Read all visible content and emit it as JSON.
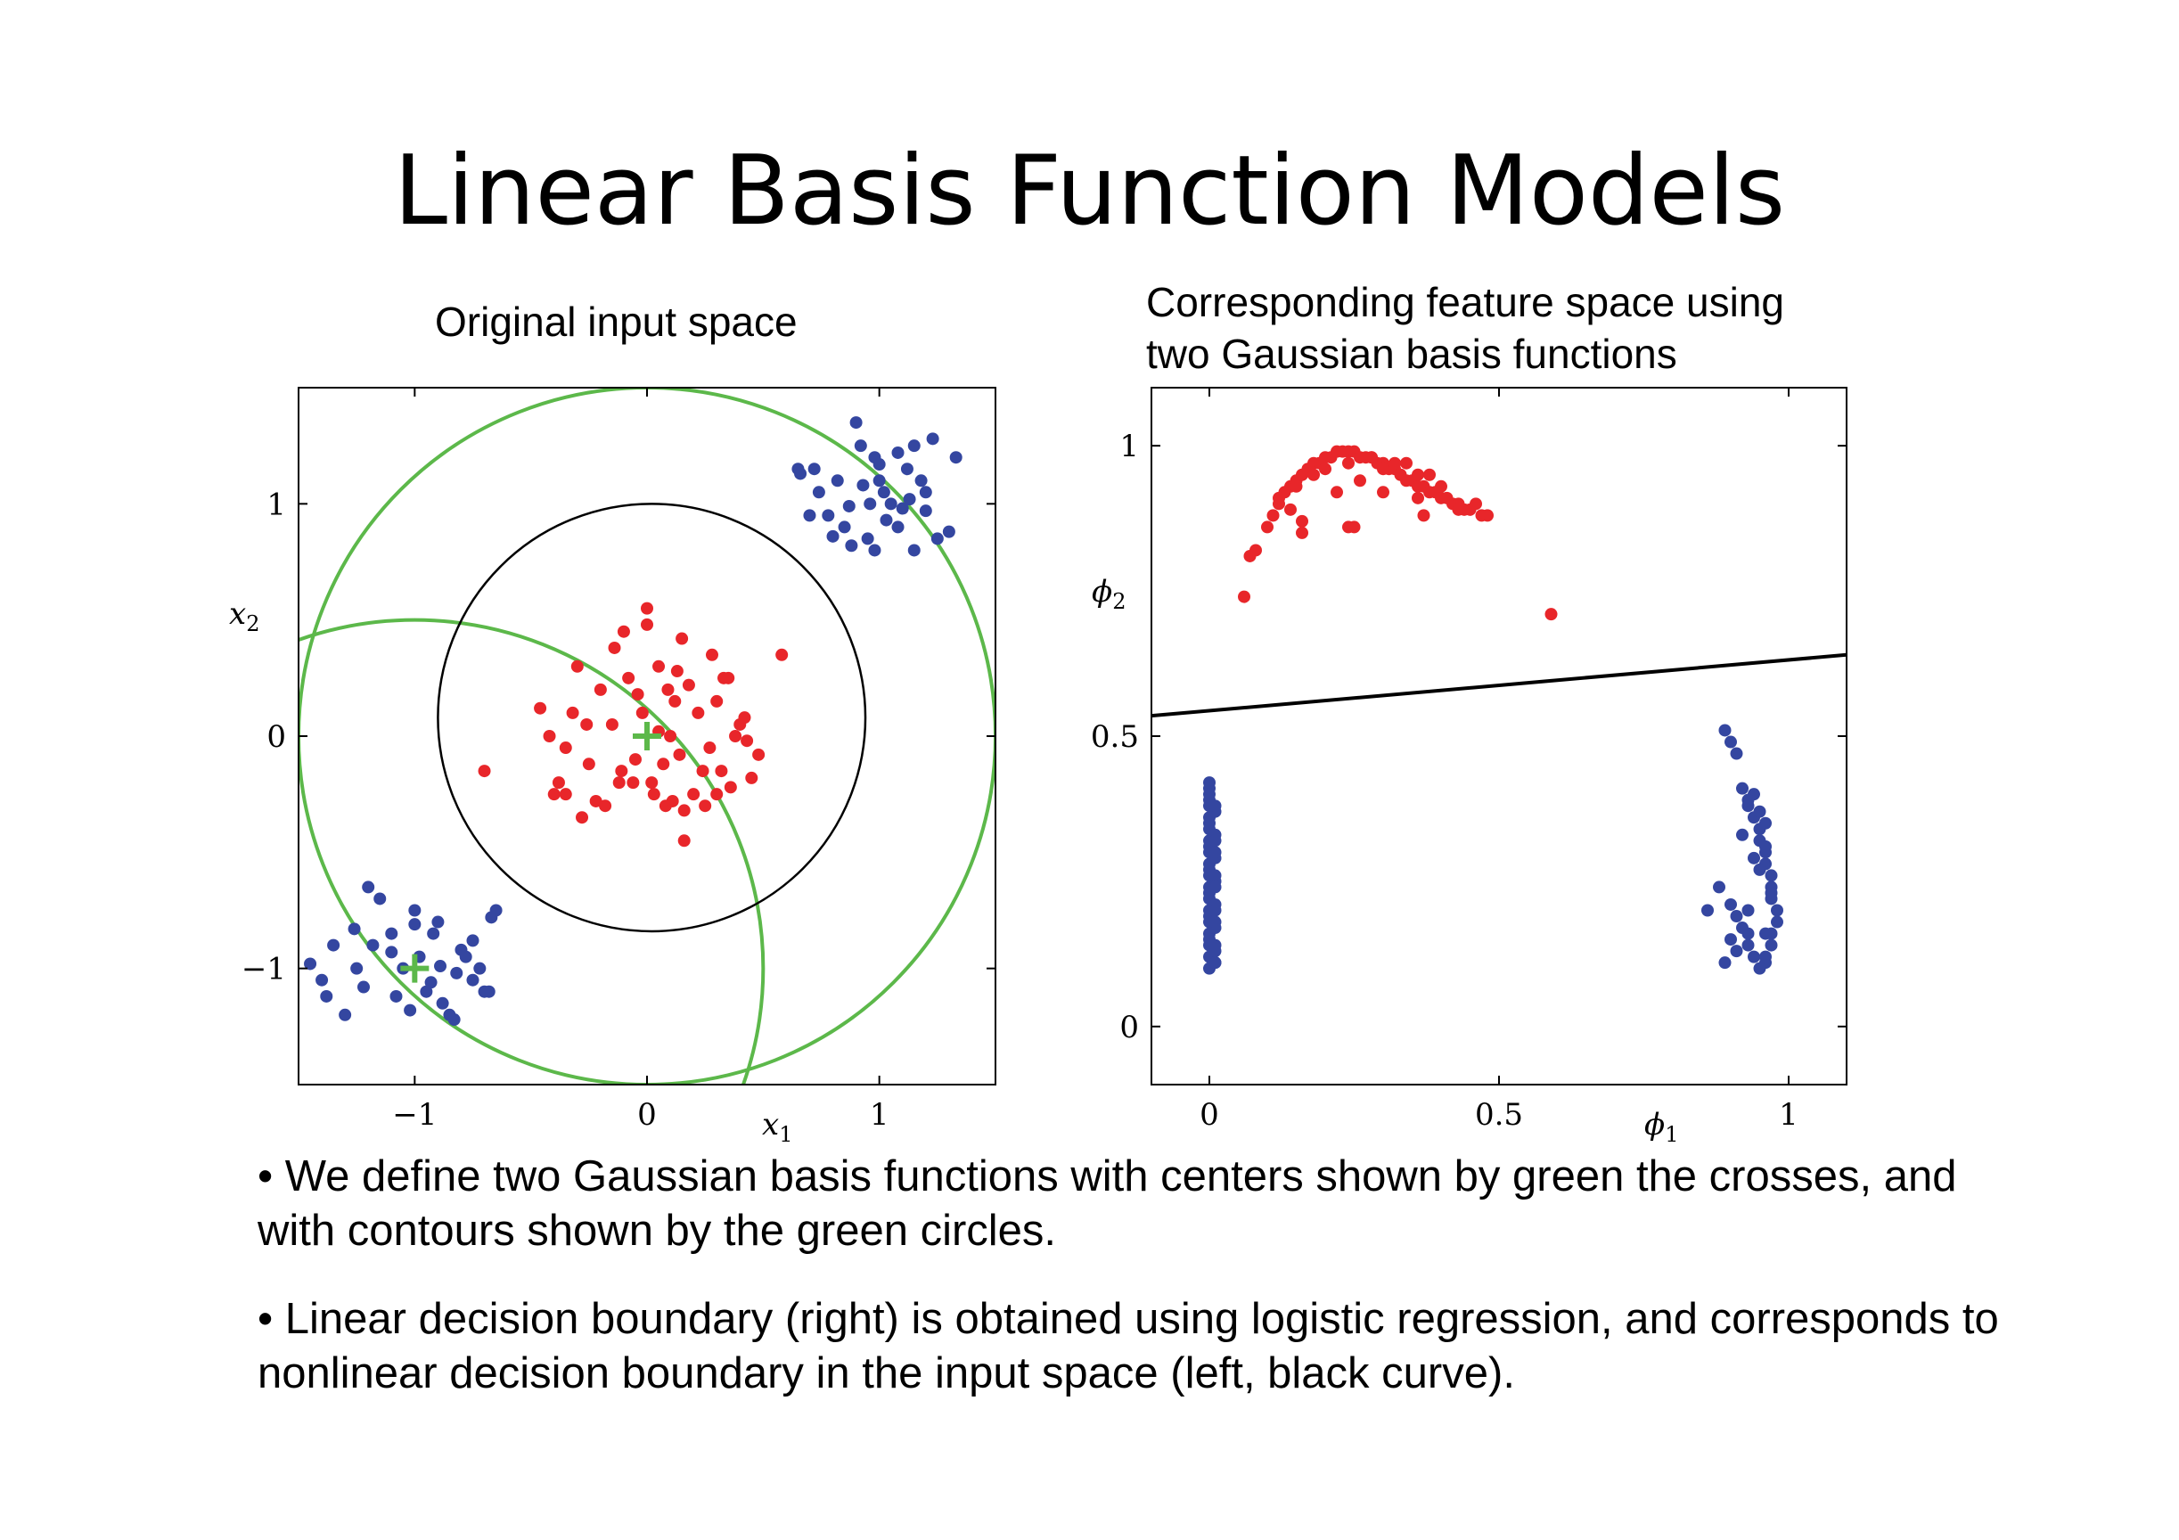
{
  "slide": {
    "title": "Linear Basis Function Models",
    "left_caption": "Original input space",
    "right_caption_line1": "Corresponding feature space using",
    "right_caption_line2": "two Gaussian basis functions",
    "bullets": [
      "• We define two Gaussian basis functions with centers shown by green the crosses, and with contours shown by the green circles.",
      "• Linear decision boundary (right) is obtained using logistic regression, and corresponds to nonlinear decision boundary in the input space (left, black curve)."
    ]
  },
  "colors": {
    "red_class": "#e8262a",
    "blue_class": "#3446a0",
    "contour": "#5cb84a",
    "boundary": "#000000"
  },
  "chart_data": [
    {
      "type": "scatter",
      "title": "Original input space",
      "xlabel": "x1",
      "ylabel": "x2",
      "xlim": [
        -1.5,
        1.5
      ],
      "ylim": [
        -1.5,
        1.5
      ],
      "xticks": [
        "−1",
        "0",
        "1"
      ],
      "yticks": [
        "1",
        "0",
        "−1"
      ],
      "xtick_values": [
        -1,
        0,
        1
      ],
      "ytick_values": [
        1,
        0,
        -1
      ],
      "series": [
        {
          "class": "red",
          "x": [
            0.0,
            -0.3,
            0.28,
            -0.1,
            0.35,
            0.15,
            0.22,
            -0.2,
            0.05,
            0.4,
            -0.35,
            0.1,
            -0.05,
            0.32,
            -0.25,
            0.48,
            -0.12,
            0.2,
            -0.4,
            0.08,
            0.25,
            -0.28,
            0.36,
            0.12,
            -0.15,
            0.3,
            -0.02,
            0.18,
            -0.32,
            0.02,
            -0.22,
            0.27,
            0.07,
            -0.08,
            0.14,
            -0.38,
            0.43,
            -0.18,
            0.38,
            0.03,
            0.16,
            -0.26,
            0.24,
            0.09,
            -0.11,
            0.33,
            -0.04,
            0.11,
            -0.42,
            0.05,
            -0.35,
            0.3,
            0.16,
            -0.14,
            0.58,
            -0.7,
            0.45,
            0.0,
            0.42,
            -0.46,
            0.13,
            -0.06
          ],
          "y": [
            0.55,
            0.3,
            0.35,
            0.45,
            0.25,
            0.42,
            0.1,
            0.2,
            0.3,
            0.05,
            -0.05,
            0.0,
            -0.1,
            -0.15,
            -0.12,
            -0.08,
            -0.2,
            -0.25,
            -0.25,
            -0.3,
            -0.3,
            -0.35,
            -0.22,
            0.15,
            0.05,
            0.15,
            0.1,
            0.22,
            0.1,
            -0.2,
            -0.28,
            -0.05,
            -0.12,
            0.25,
            -0.08,
            -0.2,
            -0.02,
            -0.3,
            0.0,
            -0.25,
            -0.32,
            0.05,
            -0.15,
            0.2,
            -0.15,
            0.25,
            0.18,
            -0.28,
            0.0,
            0.02,
            -0.25,
            -0.25,
            -0.45,
            0.38,
            0.35,
            -0.15,
            -0.18,
            0.48,
            0.08,
            0.12,
            0.28,
            -0.2
          ]
        },
        {
          "class": "blue",
          "x": [
            0.9,
            0.72,
            1.2,
            1.15,
            1.33,
            1.3,
            0.82,
            0.98,
            1.05,
            0.95,
            1.0,
            0.78,
            1.08,
            0.65,
            1.02,
            0.92,
            0.88,
            1.12,
            1.18,
            0.74,
            1.03,
            1.1,
            0.85,
            1.25,
            0.7,
            0.93,
            1.08,
            0.98,
            1.15,
            1.23,
            0.8,
            0.87,
            1.0,
            0.66,
            0.96,
            1.13,
            1.2,
            -1.0,
            -1.2,
            -1.35,
            -0.9,
            -0.8,
            -0.7,
            -1.1,
            -1.25,
            -0.75,
            -0.65,
            -0.85,
            -1.05,
            -0.95,
            -1.4,
            -0.98,
            -1.15,
            -0.88,
            -1.3,
            -0.72,
            -1.08,
            -1.18,
            -0.67,
            -0.92,
            -0.78,
            -1.45,
            -0.82,
            -1.02,
            -1.26,
            -0.93,
            -1.1,
            -0.83,
            -1.38,
            -0.75,
            -1.0,
            -1.22,
            -0.89,
            -0.68
          ],
          "y": [
            1.35,
            1.15,
            1.05,
            1.25,
            1.2,
            0.88,
            1.1,
            1.2,
            1.0,
            0.85,
            1.1,
            0.95,
            0.9,
            1.15,
            1.05,
            1.25,
            0.82,
            1.15,
            1.1,
            1.05,
            0.93,
            0.98,
            0.9,
            0.85,
            0.95,
            1.08,
            1.22,
            0.8,
            0.8,
            1.28,
            0.86,
            0.99,
            1.17,
            1.13,
            1.0,
            1.02,
            0.97,
            -0.75,
            -0.65,
            -0.9,
            -0.8,
            -0.92,
            -1.1,
            -0.85,
            -1.0,
            -1.05,
            -0.75,
            -1.2,
            -1.0,
            -1.1,
            -1.05,
            -0.95,
            -0.7,
            -1.15,
            -1.2,
            -1.0,
            -1.12,
            -0.9,
            -0.78,
            -0.85,
            -0.95,
            -0.98,
            -1.02,
            -1.18,
            -0.83,
            -1.06,
            -0.93,
            -1.22,
            -1.12,
            -0.88,
            -0.81,
            -1.08,
            -0.99,
            -1.1
          ]
        }
      ],
      "basis_centers": [
        [
          0,
          0
        ],
        [
          -1,
          -1
        ]
      ],
      "green_contours": [
        {
          "center": [
            0,
            0
          ],
          "radius": 1.5
        },
        {
          "center": [
            -1,
            -1
          ],
          "radius": 1.5
        }
      ],
      "decision_boundary": {
        "shape": "circle",
        "center": [
          0.02,
          0.08
        ],
        "radius": 0.92
      }
    },
    {
      "type": "scatter",
      "title": "Corresponding feature space using two Gaussian basis functions",
      "xlabel": "ϕ1",
      "ylabel": "ϕ2",
      "xlim": [
        -0.1,
        1.1
      ],
      "ylim": [
        -0.1,
        1.1
      ],
      "xticks": [
        "0",
        "0.5",
        "1"
      ],
      "yticks": [
        "1",
        "0.5",
        "0"
      ],
      "xtick_values": [
        0,
        0.5,
        1
      ],
      "ytick_values": [
        1,
        0.5,
        0
      ],
      "series": [
        {
          "class": "red",
          "x": [
            0.06,
            0.07,
            0.08,
            0.1,
            0.11,
            0.12,
            0.13,
            0.14,
            0.15,
            0.16,
            0.17,
            0.18,
            0.19,
            0.2,
            0.21,
            0.22,
            0.23,
            0.24,
            0.25,
            0.26,
            0.27,
            0.28,
            0.29,
            0.3,
            0.31,
            0.32,
            0.33,
            0.34,
            0.35,
            0.36,
            0.37,
            0.38,
            0.39,
            0.4,
            0.41,
            0.42,
            0.43,
            0.44,
            0.45,
            0.46,
            0.47,
            0.48,
            0.12,
            0.15,
            0.18,
            0.2,
            0.24,
            0.28,
            0.32,
            0.36,
            0.4,
            0.14,
            0.22,
            0.26,
            0.3,
            0.34,
            0.38,
            0.16,
            0.24,
            0.3,
            0.36,
            0.16,
            0.25,
            0.37,
            0.43,
            0.59
          ],
          "y": [
            0.74,
            0.81,
            0.82,
            0.86,
            0.88,
            0.9,
            0.92,
            0.93,
            0.94,
            0.95,
            0.96,
            0.97,
            0.97,
            0.98,
            0.98,
            0.99,
            0.99,
            0.99,
            0.99,
            0.98,
            0.98,
            0.98,
            0.97,
            0.97,
            0.96,
            0.96,
            0.95,
            0.94,
            0.94,
            0.93,
            0.93,
            0.92,
            0.92,
            0.91,
            0.91,
            0.9,
            0.9,
            0.89,
            0.89,
            0.9,
            0.88,
            0.88,
            0.91,
            0.93,
            0.95,
            0.96,
            0.97,
            0.98,
            0.97,
            0.95,
            0.93,
            0.89,
            0.92,
            0.94,
            0.96,
            0.97,
            0.95,
            0.87,
            0.86,
            0.92,
            0.91,
            0.85,
            0.86,
            0.88,
            0.89,
            0.71
          ]
        },
        {
          "class": "blue",
          "x": [
            0.0,
            0.0,
            0.0,
            0.0,
            0.0,
            0.0,
            0.0,
            0.0,
            0.0,
            0.0,
            0.0,
            0.0,
            0.0,
            0.0,
            0.0,
            0.0,
            0.0,
            0.0,
            0.0,
            0.0,
            0.0,
            0.0,
            0.0,
            0.0,
            0.0,
            0.01,
            0.01,
            0.01,
            0.01,
            0.01,
            0.01,
            0.01,
            0.01,
            0.01,
            0.01,
            0.01,
            0.01,
            0.01,
            0.01,
            0.01,
            0.01,
            0.01,
            0.89,
            0.9,
            0.91,
            0.92,
            0.93,
            0.94,
            0.95,
            0.95,
            0.96,
            0.96,
            0.97,
            0.97,
            0.97,
            0.98,
            0.98,
            0.97,
            0.97,
            0.96,
            0.96,
            0.95,
            0.94,
            0.93,
            0.92,
            0.91,
            0.9,
            0.88,
            0.94,
            0.92,
            0.96,
            0.97,
            0.95,
            0.93,
            0.89,
            0.91,
            0.93,
            0.94,
            0.95,
            0.96,
            0.86,
            0.96,
            0.93,
            0.9
          ],
          "y": [
            0.1,
            0.12,
            0.14,
            0.16,
            0.18,
            0.2,
            0.22,
            0.24,
            0.26,
            0.28,
            0.3,
            0.32,
            0.34,
            0.36,
            0.38,
            0.4,
            0.41,
            0.15,
            0.19,
            0.23,
            0.27,
            0.31,
            0.35,
            0.39,
            0.42,
            0.11,
            0.13,
            0.17,
            0.21,
            0.25,
            0.29,
            0.33,
            0.37,
            0.11,
            0.14,
            0.2,
            0.26,
            0.32,
            0.38,
            0.24,
            0.3,
            0.18,
            0.51,
            0.49,
            0.47,
            0.41,
            0.38,
            0.36,
            0.34,
            0.32,
            0.3,
            0.28,
            0.26,
            0.24,
            0.22,
            0.2,
            0.18,
            0.16,
            0.14,
            0.12,
            0.11,
            0.1,
            0.12,
            0.14,
            0.17,
            0.19,
            0.21,
            0.24,
            0.29,
            0.33,
            0.31,
            0.23,
            0.27,
            0.2,
            0.11,
            0.13,
            0.16,
            0.4,
            0.37,
            0.35,
            0.2,
            0.16,
            0.39,
            0.15
          ]
        }
      ],
      "decision_boundary": {
        "shape": "line",
        "points": [
          [
            -0.1,
            0.535
          ],
          [
            1.1,
            0.64
          ]
        ]
      }
    }
  ]
}
